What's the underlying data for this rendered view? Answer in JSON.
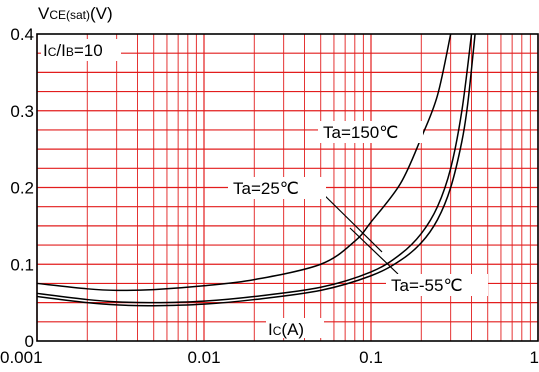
{
  "chart_data": {
    "type": "line",
    "x_scale": "log",
    "xlim": [
      0.001,
      1
    ],
    "ylim": [
      0,
      0.4
    ],
    "grid": true,
    "ylabel": {
      "main": "V",
      "sub": "CE(sat)",
      "unit": "(V)"
    },
    "xlabel": {
      "main": "I",
      "sub": "C",
      "unit": "(A)"
    },
    "condition": {
      "a": "I",
      "a_sub": "C",
      "sep": "/I",
      "b_sub": "B",
      "value": "=10"
    },
    "x_ticks": [
      {
        "value": 0.001,
        "label": "0.001"
      },
      {
        "value": 0.01,
        "label": "0.01"
      },
      {
        "value": 0.1,
        "label": "0.1"
      },
      {
        "value": 1,
        "label": "1"
      }
    ],
    "y_ticks": [
      {
        "value": 0,
        "label": "0"
      },
      {
        "value": 0.1,
        "label": "0.1"
      },
      {
        "value": 0.2,
        "label": "0.2"
      },
      {
        "value": 0.3,
        "label": "0.3"
      },
      {
        "value": 0.4,
        "label": "0.4"
      }
    ],
    "series": [
      {
        "name": "Ta=150℃",
        "x": [
          0.001,
          0.002,
          0.003,
          0.005,
          0.01,
          0.02,
          0.05,
          0.08,
          0.1,
          0.15,
          0.2,
          0.25,
          0.3
        ],
        "y": [
          0.075,
          0.068,
          0.066,
          0.067,
          0.072,
          0.08,
          0.1,
          0.13,
          0.155,
          0.205,
          0.265,
          0.32,
          0.4
        ]
      },
      {
        "name": "Ta=25℃",
        "x": [
          0.001,
          0.002,
          0.003,
          0.005,
          0.01,
          0.02,
          0.05,
          0.1,
          0.15,
          0.2,
          0.25,
          0.3,
          0.35,
          0.4
        ],
        "y": [
          0.062,
          0.054,
          0.051,
          0.05,
          0.052,
          0.058,
          0.07,
          0.09,
          0.113,
          0.14,
          0.175,
          0.225,
          0.3,
          0.4
        ]
      },
      {
        "name": "Ta=-55℃",
        "x": [
          0.001,
          0.002,
          0.003,
          0.005,
          0.01,
          0.02,
          0.05,
          0.1,
          0.15,
          0.2,
          0.25,
          0.3,
          0.35,
          0.38,
          0.42
        ],
        "y": [
          0.058,
          0.05,
          0.047,
          0.046,
          0.048,
          0.054,
          0.066,
          0.085,
          0.105,
          0.128,
          0.158,
          0.2,
          0.26,
          0.31,
          0.4
        ]
      }
    ]
  }
}
